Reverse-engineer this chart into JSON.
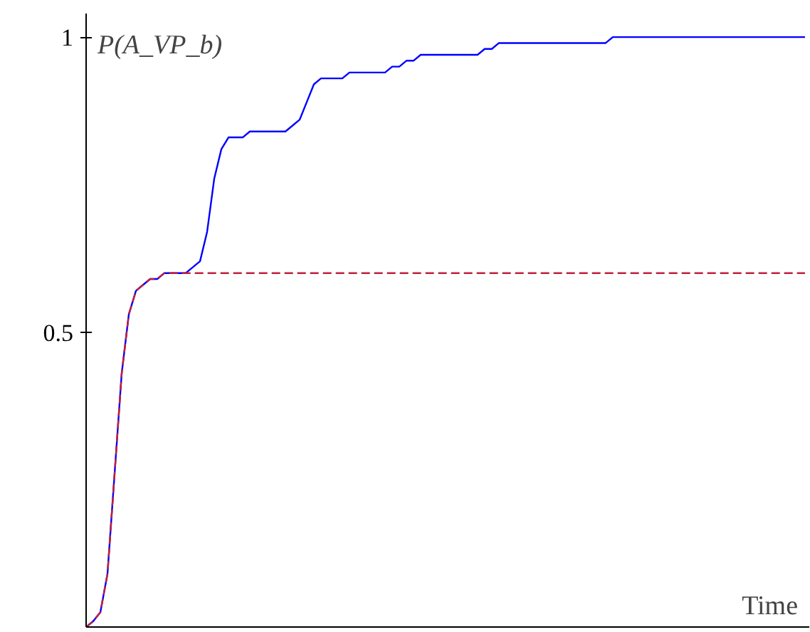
{
  "chart_data": {
    "type": "line",
    "ylabel": "P(A_VP_b)",
    "xlabel": "Time",
    "categories": [
      null,
      null,
      null,
      null,
      null,
      null,
      null,
      null,
      null,
      null,
      null,
      null,
      null,
      null,
      null,
      null,
      null,
      null,
      null,
      null,
      null,
      null,
      null,
      null,
      null,
      null,
      null,
      null,
      null,
      null,
      null,
      null,
      null,
      null,
      null,
      null,
      null,
      null,
      null,
      null,
      null,
      null,
      null,
      null,
      null,
      null,
      null,
      null,
      null,
      null,
      null,
      null,
      null,
      null,
      null,
      null,
      null,
      null,
      null,
      null,
      null,
      null,
      null,
      null,
      null,
      null,
      null,
      null,
      null,
      null,
      null,
      null,
      null,
      null,
      null,
      null,
      null,
      null,
      null,
      null,
      null,
      null,
      null,
      null,
      null,
      null,
      null,
      null,
      null,
      null,
      null,
      null,
      null,
      null,
      null,
      null,
      null,
      null,
      null,
      null,
      null,
      null
    ],
    "series": [
      {
        "color": "#0000ff",
        "line_style": "solid",
        "values": [
          0,
          0.01,
          0.025,
          0.09,
          0.26,
          0.43,
          0.53,
          0.57,
          0.58,
          0.59,
          0.59,
          0.6,
          0.6,
          0.6,
          0.6,
          0.61,
          0.62,
          0.67,
          0.76,
          0.81,
          0.83,
          0.83,
          0.83,
          0.84,
          0.84,
          0.84,
          0.84,
          0.84,
          0.84,
          0.85,
          0.86,
          0.89,
          0.92,
          0.93,
          0.93,
          0.93,
          0.93,
          0.94,
          0.94,
          0.94,
          0.94,
          0.94,
          0.94,
          0.95,
          0.95,
          0.96,
          0.96,
          0.97,
          0.97,
          0.97,
          0.97,
          0.97,
          0.97,
          0.97,
          0.97,
          0.97,
          0.98,
          0.98,
          0.99,
          0.99,
          0.99,
          0.99,
          0.99,
          0.99,
          0.99,
          0.99,
          0.99,
          0.99,
          0.99,
          0.99,
          0.99,
          0.99,
          0.99,
          0.99,
          1.0,
          1.0,
          1.0,
          1.0,
          1.0,
          1.0,
          1.0,
          1.0,
          1.0,
          1.0,
          1.0,
          1.0,
          1.0,
          1.0,
          1.0,
          1.0,
          1.0,
          1.0,
          1.0,
          1.0,
          1.0,
          1.0,
          1.0,
          1.0,
          1.0,
          1.0,
          1.0,
          1.0
        ]
      },
      {
        "color": "#c0203a",
        "line_style": "dashed",
        "values": [
          0,
          0.01,
          0.025,
          0.09,
          0.26,
          0.43,
          0.53,
          0.57,
          0.58,
          0.59,
          0.59,
          0.6,
          0.6,
          0.6,
          0.6,
          0.6,
          0.6,
          0.6,
          0.6,
          0.6,
          0.6,
          0.6,
          0.6,
          0.6,
          0.6,
          0.6,
          0.6,
          0.6,
          0.6,
          0.6,
          0.6,
          0.6,
          0.6,
          0.6,
          0.6,
          0.6,
          0.6,
          0.6,
          0.6,
          0.6,
          0.6,
          0.6,
          0.6,
          0.6,
          0.6,
          0.6,
          0.6,
          0.6,
          0.6,
          0.6,
          0.6,
          0.6,
          0.6,
          0.6,
          0.6,
          0.6,
          0.6,
          0.6,
          0.6,
          0.6,
          0.6,
          0.6,
          0.6,
          0.6,
          0.6,
          0.6,
          0.6,
          0.6,
          0.6,
          0.6,
          0.6,
          0.6,
          0.6,
          0.6,
          0.6,
          0.6,
          0.6,
          0.6,
          0.6,
          0.6,
          0.6,
          0.6,
          0.6,
          0.6,
          0.6,
          0.6,
          0.6,
          0.6,
          0.6,
          0.6,
          0.6,
          0.6,
          0.6,
          0.6,
          0.6,
          0.6,
          0.6,
          0.6,
          0.6,
          0.6,
          0.6,
          0.6
        ]
      }
    ],
    "ylim": [
      0,
      1.04
    ],
    "yticks": [
      0.5,
      1
    ],
    "tick_labels": "y",
    "grid": false,
    "marker": "none"
  }
}
